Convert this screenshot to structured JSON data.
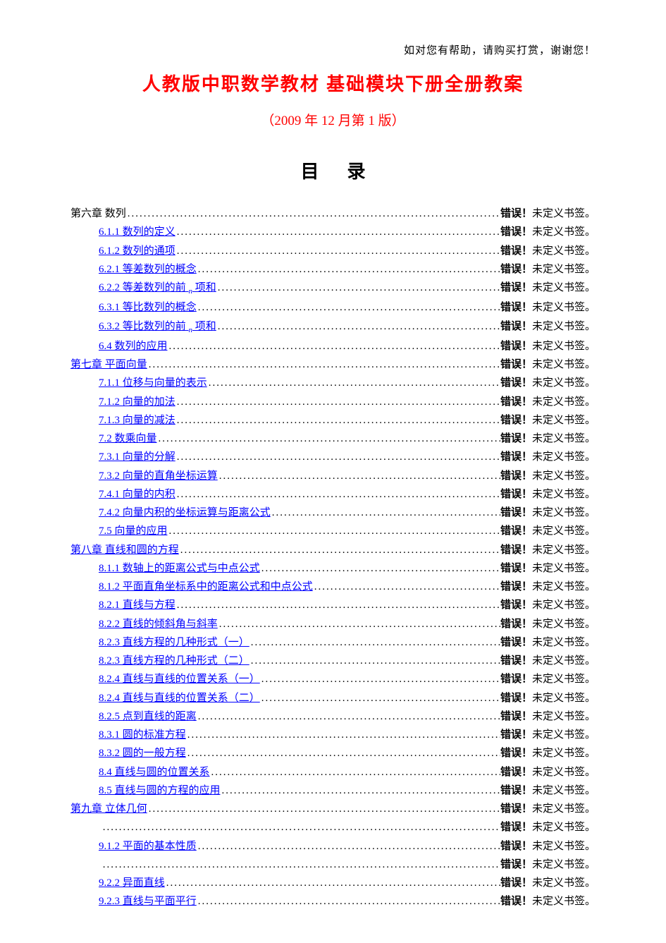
{
  "colors": {
    "title": "#ff0000",
    "link": "#0000ff",
    "text": "#000000",
    "background": "#ffffff"
  },
  "typography": {
    "body_family": "SimSun",
    "heading_family": "SimHei",
    "title_size_pt": 20,
    "toc_heading_size_pt": 20,
    "body_size_pt": 11
  },
  "header_note": "如对您有帮助，请购买打赏，谢谢您！",
  "title": "人教版中职数学教材 基础模块下册全册教案",
  "subtitle": "（2009 年 12 月第 1 版）",
  "toc_heading": "目录",
  "error_bold": "错误！",
  "error_tail": "未定义书签。",
  "toc": [
    {
      "label": "第六章  数列",
      "indent": 0,
      "link": false
    },
    {
      "label": "6.1.1  数列的定义",
      "indent": 1,
      "link": true
    },
    {
      "label": "6.1.2  数列的通项",
      "indent": 1,
      "link": true
    },
    {
      "label": "6.2.1  等差数列的概念",
      "indent": 1,
      "link": true
    },
    {
      "label": "6.2.2  等差数列的前 n 项和",
      "indent": 1,
      "link": true,
      "has_sub_n": true
    },
    {
      "label": "6.3.1  等比数列的概念",
      "indent": 1,
      "link": true
    },
    {
      "label": "6.3.2  等比数列的前 n 项和",
      "indent": 1,
      "link": true,
      "has_sub_n": true
    },
    {
      "label": "6.4  数列的应用",
      "indent": 1,
      "link": true
    },
    {
      "label": "第七章  平面向量",
      "indent": 0,
      "link": true
    },
    {
      "label": "7.1.1   位移与向量的表示",
      "indent": 1,
      "link": true
    },
    {
      "label": "7.1.2   向量的加法",
      "indent": 1,
      "link": true
    },
    {
      "label": "7.1.3   向量的减法",
      "indent": 1,
      "link": true
    },
    {
      "label": "7.2   数乘向量",
      "indent": 1,
      "link": true
    },
    {
      "label": "7.3.1   向量的分解",
      "indent": 1,
      "link": true
    },
    {
      "label": "7.3.2   向量的直角坐标运算",
      "indent": 1,
      "link": true
    },
    {
      "label": "7.4.1   向量的内积",
      "indent": 1,
      "link": true
    },
    {
      "label": "7.4.2   向量内积的坐标运算与距离公式",
      "indent": 1,
      "link": true
    },
    {
      "label": "7.5   向量的应用",
      "indent": 1,
      "link": true
    },
    {
      "label": "第八章  直线和圆的方程",
      "indent": 0,
      "link": true
    },
    {
      "label": "8.1.1  数轴上的距离公式与中点公式",
      "indent": 1,
      "link": true
    },
    {
      "label": "8.1.2  平面直角坐标系中的距离公式和中点公式",
      "indent": 1,
      "link": true
    },
    {
      "label": "8.2.1  直线与方程",
      "indent": 1,
      "link": true
    },
    {
      "label": "8.2.2  直线的倾斜角与斜率",
      "indent": 1,
      "link": true
    },
    {
      "label": "8.2.3  直线方程的几种形式（一）",
      "indent": 1,
      "link": true
    },
    {
      "label": "8.2.3  直线方程的几种形式（二）",
      "indent": 1,
      "link": true
    },
    {
      "label": "8.2.4  直线与直线的位置关系（一）",
      "indent": 1,
      "link": true
    },
    {
      "label": "8.2.4  直线与直线的位置关系（二）",
      "indent": 1,
      "link": true
    },
    {
      "label": "8.2.5  点到直线的距离",
      "indent": 1,
      "link": true
    },
    {
      "label": "8.3.1  圆的标准方程",
      "indent": 1,
      "link": true
    },
    {
      "label": "8.3.2  圆的一般方程",
      "indent": 1,
      "link": true
    },
    {
      "label": "8.4  直线与圆的位置关系",
      "indent": 1,
      "link": true
    },
    {
      "label": "8.5  直线与圆的方程的应用",
      "indent": 1,
      "link": true
    },
    {
      "label": "第九章  立体几何",
      "indent": 0,
      "link": true
    },
    {
      "label": "",
      "indent": 1,
      "link": false,
      "blank": true
    },
    {
      "label": "9.1.2  平面的基本性质",
      "indent": 1,
      "link": true
    },
    {
      "label": "",
      "indent": 1,
      "link": false,
      "blank": true
    },
    {
      "label": "9.2.2  异面直线",
      "indent": 1,
      "link": true
    },
    {
      "label": "9.2.3  直线与平面平行",
      "indent": 1,
      "link": true
    }
  ]
}
